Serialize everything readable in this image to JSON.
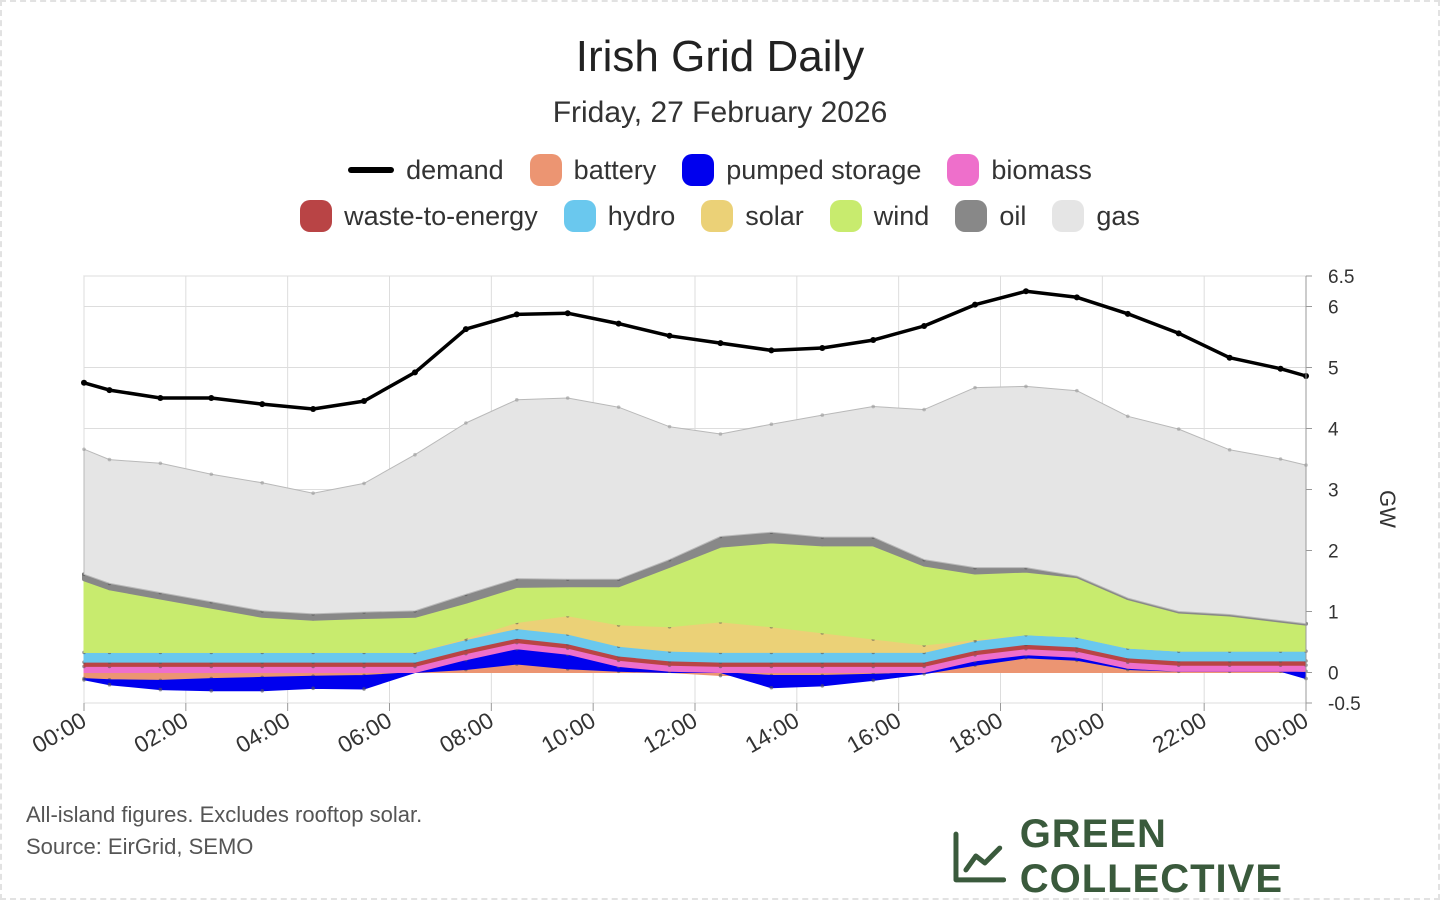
{
  "chart_data": {
    "type": "area",
    "title": "Irish Grid Daily",
    "subtitle": "Friday, 27 February 2026",
    "ylabel": "GW",
    "ylim": [
      -0.5,
      6.5
    ],
    "yticks": [
      -0.5,
      0,
      1,
      2,
      3,
      4,
      5,
      6,
      6.5
    ],
    "ytick_labels": [
      "-0.5",
      "0",
      "1",
      "2",
      "3",
      "4",
      "5",
      "6",
      "6.5"
    ],
    "xtick_labels": [
      "00:00",
      "02:00",
      "04:00",
      "06:00",
      "08:00",
      "10:00",
      "12:00",
      "14:00",
      "16:00",
      "18:00",
      "20:00",
      "22:00",
      "00:00"
    ],
    "grid": true,
    "legend_position": "top-center",
    "x_hours": [
      0,
      0.5,
      1.5,
      2.5,
      3.5,
      4.5,
      5.5,
      6.5,
      7.5,
      8.5,
      9.5,
      10.5,
      11.5,
      12.5,
      13.5,
      14.5,
      15.5,
      16.5,
      17.5,
      18.5,
      19.5,
      20.5,
      21.5,
      22.5,
      23.5,
      24
    ],
    "demand": [
      4.75,
      4.63,
      4.5,
      4.5,
      4.4,
      4.32,
      4.45,
      4.92,
      5.63,
      5.87,
      5.89,
      5.72,
      5.52,
      5.4,
      5.28,
      5.32,
      5.45,
      5.68,
      6.03,
      6.25,
      6.15,
      5.88,
      5.56,
      5.16,
      4.98,
      4.86
    ],
    "series": [
      {
        "name": "battery",
        "color": "#ec9572",
        "values": [
          -0.1,
          -0.12,
          -0.13,
          -0.1,
          -0.08,
          -0.06,
          -0.05,
          0,
          0.05,
          0.14,
          0.06,
          0.02,
          0,
          -0.05,
          -0.05,
          -0.05,
          -0.03,
          0,
          0.12,
          0.24,
          0.2,
          0.05,
          0.02,
          0.02,
          0.02,
          0.02
        ]
      },
      {
        "name": "pumped storage",
        "color": "#0000ee",
        "values": [
          -0.02,
          -0.08,
          -0.15,
          -0.2,
          -0.22,
          -0.2,
          -0.22,
          0,
          0.16,
          0.25,
          0.24,
          0.08,
          0.02,
          0,
          -0.2,
          -0.17,
          -0.1,
          -0.02,
          0.07,
          0.05,
          0.05,
          0.02,
          0,
          0,
          0,
          -0.1
        ]
      },
      {
        "name": "biomass",
        "color": "#ee6fcb",
        "values": [
          0.1,
          0.1,
          0.1,
          0.1,
          0.1,
          0.1,
          0.1,
          0.1,
          0.1,
          0.1,
          0.1,
          0.1,
          0.1,
          0.1,
          0.1,
          0.1,
          0.1,
          0.1,
          0.1,
          0.1,
          0.1,
          0.1,
          0.1,
          0.1,
          0.1,
          0.1
        ]
      },
      {
        "name": "waste-to-energy",
        "color": "#b94445",
        "values": [
          0.07,
          0.07,
          0.07,
          0.07,
          0.07,
          0.07,
          0.07,
          0.07,
          0.07,
          0.07,
          0.07,
          0.07,
          0.07,
          0.07,
          0.07,
          0.07,
          0.07,
          0.07,
          0.07,
          0.07,
          0.07,
          0.07,
          0.07,
          0.07,
          0.07,
          0.07
        ]
      },
      {
        "name": "hydro",
        "color": "#6ac8ee",
        "values": [
          0.16,
          0.16,
          0.16,
          0.16,
          0.16,
          0.16,
          0.16,
          0.16,
          0.16,
          0.16,
          0.16,
          0.16,
          0.16,
          0.16,
          0.16,
          0.16,
          0.16,
          0.16,
          0.16,
          0.16,
          0.16,
          0.16,
          0.16,
          0.16,
          0.16,
          0.16
        ]
      },
      {
        "name": "solar",
        "color": "#ebd177",
        "values": [
          0,
          0,
          0,
          0,
          0,
          0,
          0,
          0,
          0.02,
          0.1,
          0.3,
          0.35,
          0.4,
          0.5,
          0.42,
          0.32,
          0.22,
          0.12,
          0.02,
          0,
          0,
          0,
          0,
          0,
          0,
          0
        ]
      },
      {
        "name": "wind",
        "color": "#c8eb6e",
        "values": [
          1.2,
          1.05,
          0.9,
          0.75,
          0.6,
          0.55,
          0.58,
          0.6,
          0.6,
          0.6,
          0.5,
          0.65,
          1.0,
          1.25,
          1.4,
          1.45,
          1.55,
          1.32,
          1.1,
          1.05,
          1.0,
          0.82,
          0.65,
          0.6,
          0.5,
          0.45
        ]
      },
      {
        "name": "oil",
        "color": "#888888",
        "values": [
          0.08,
          0.08,
          0.08,
          0.08,
          0.08,
          0.08,
          0.08,
          0.08,
          0.12,
          0.12,
          0.1,
          0.1,
          0.1,
          0.15,
          0.15,
          0.12,
          0.12,
          0.08,
          0.08,
          0.05,
          0,
          0,
          0,
          0,
          0,
          0
        ]
      },
      {
        "name": "gas",
        "color": "#e5e5e5",
        "values": [
          2.05,
          2.03,
          2.12,
          2.09,
          2.1,
          1.98,
          2.11,
          2.56,
          2.81,
          2.93,
          2.97,
          2.82,
          2.18,
          1.68,
          1.77,
          2.0,
          2.14,
          2.46,
          2.95,
          2.97,
          3.04,
          2.98,
          2.99,
          2.7,
          2.65,
          2.6
        ]
      }
    ]
  },
  "legend": [
    {
      "label": "demand",
      "kind": "line",
      "color": "#000000"
    },
    {
      "label": "battery",
      "kind": "box",
      "color": "#ec9572"
    },
    {
      "label": "pumped storage",
      "kind": "box",
      "color": "#0000ee"
    },
    {
      "label": "biomass",
      "kind": "box",
      "color": "#ee6fcb"
    },
    {
      "label": "waste-to-energy",
      "kind": "box",
      "color": "#b94445"
    },
    {
      "label": "hydro",
      "kind": "box",
      "color": "#6ac8ee"
    },
    {
      "label": "solar",
      "kind": "box",
      "color": "#ebd177"
    },
    {
      "label": "wind",
      "kind": "box",
      "color": "#c8eb6e"
    },
    {
      "label": "oil",
      "kind": "box",
      "color": "#888888"
    },
    {
      "label": "gas",
      "kind": "box",
      "color": "#e5e5e5"
    }
  ],
  "footnotes": {
    "line1": "All-island figures. Excludes rooftop solar.",
    "line2": "Source: EirGrid, SEMO"
  },
  "brand": {
    "name": "GREEN COLLECTIVE",
    "color": "#3a5a3c"
  }
}
